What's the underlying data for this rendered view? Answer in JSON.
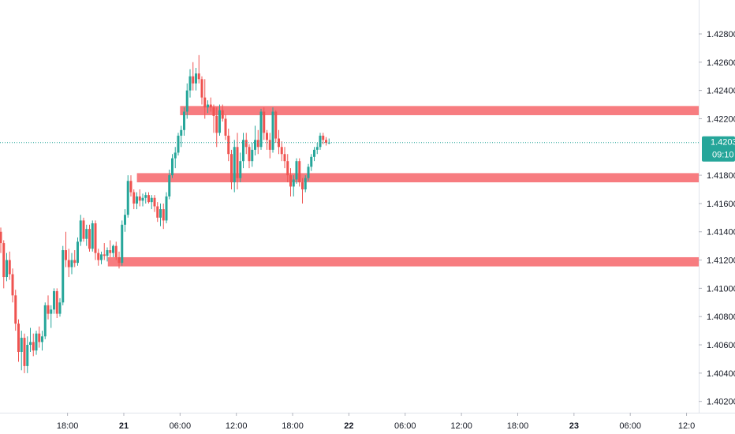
{
  "chart_data": {
    "type": "candlestick",
    "instrument": "",
    "x_tick_labels": [
      "18:00",
      "21",
      "06:00",
      "12:00",
      "18:00",
      "22",
      "06:00",
      "12:00",
      "18:00",
      "23",
      "06:00",
      "12:0"
    ],
    "x_tick_hours": [
      18,
      24,
      30,
      36,
      42,
      48,
      54,
      60,
      66,
      72,
      78,
      84
    ],
    "bold_ticks": [
      "21",
      "22",
      "23"
    ],
    "y_tick_labels": [
      "1.42800",
      "1.42600",
      "1.42400",
      "1.42200",
      "1.42000",
      "1.41800",
      "1.41600",
      "1.41400",
      "1.41200",
      "1.41000",
      "1.40800",
      "1.40600",
      "1.40400",
      "1.40200"
    ],
    "ylim": [
      1.4012,
      1.4304
    ],
    "xlim_hours": [
      10.8,
      85.3
    ],
    "last_price": "1.42031",
    "last_price_value": 1.42031,
    "countdown": "09:10",
    "colors": {
      "up": "#26a69a",
      "down": "#ef5350",
      "zone": "#f77c80",
      "price_line": "#26a69a",
      "axis_text": "#131722",
      "axis_line": "#e0e3eb"
    },
    "zones": [
      {
        "start_hour": 30.0,
        "bottom": 1.42225,
        "top": 1.4229
      },
      {
        "start_hour": 25.4,
        "bottom": 1.4175,
        "top": 1.41815
      },
      {
        "start_hour": 22.3,
        "bottom": 1.41155,
        "top": 1.4122
      }
    ],
    "ohlc": [
      [
        1.414,
        1.4143,
        1.4125,
        1.4132
      ],
      [
        1.4132,
        1.4134,
        1.41,
        1.4108
      ],
      [
        1.4108,
        1.4125,
        1.4105,
        1.412
      ],
      [
        1.412,
        1.4126,
        1.4106,
        1.411
      ],
      [
        1.411,
        1.4114,
        1.409,
        1.4095
      ],
      [
        1.4095,
        1.4099,
        1.407,
        1.4075
      ],
      [
        1.4075,
        1.4078,
        1.4048,
        1.4055
      ],
      [
        1.4055,
        1.407,
        1.4042,
        1.4065
      ],
      [
        1.4065,
        1.4068,
        1.404,
        1.4045
      ],
      [
        1.4045,
        1.4066,
        1.404,
        1.406
      ],
      [
        1.406,
        1.4072,
        1.4055,
        1.4062
      ],
      [
        1.4062,
        1.4068,
        1.4052,
        1.4056
      ],
      [
        1.4056,
        1.407,
        1.4053,
        1.4068
      ],
      [
        1.4068,
        1.4073,
        1.4058,
        1.4062
      ],
      [
        1.4062,
        1.407,
        1.4056,
        1.4066
      ],
      [
        1.4066,
        1.409,
        1.4064,
        1.4088
      ],
      [
        1.4088,
        1.4095,
        1.4078,
        1.4082
      ],
      [
        1.4082,
        1.4088,
        1.4072,
        1.4085
      ],
      [
        1.4085,
        1.41,
        1.4082,
        1.4098
      ],
      [
        1.4098,
        1.41,
        1.4079,
        1.4082
      ],
      [
        1.4082,
        1.4093,
        1.408,
        1.409
      ],
      [
        1.409,
        1.413,
        1.4088,
        1.4127
      ],
      [
        1.4127,
        1.414,
        1.4115,
        1.412
      ],
      [
        1.412,
        1.4128,
        1.4108,
        1.4115
      ],
      [
        1.4115,
        1.4125,
        1.411,
        1.412
      ],
      [
        1.412,
        1.4127,
        1.4115,
        1.4118
      ],
      [
        1.4118,
        1.4136,
        1.4116,
        1.4133
      ],
      [
        1.4133,
        1.4152,
        1.413,
        1.4148
      ],
      [
        1.4148,
        1.415,
        1.4133,
        1.4135
      ],
      [
        1.4135,
        1.4145,
        1.413,
        1.4142
      ],
      [
        1.4142,
        1.4145,
        1.4126,
        1.4128
      ],
      [
        1.4128,
        1.4148,
        1.4126,
        1.4146
      ],
      [
        1.4146,
        1.4148,
        1.412,
        1.4125
      ],
      [
        1.4125,
        1.4128,
        1.4116,
        1.412
      ],
      [
        1.412,
        1.4126,
        1.4117,
        1.4124
      ],
      [
        1.4124,
        1.4132,
        1.412,
        1.4123
      ],
      [
        1.4123,
        1.4129,
        1.4119,
        1.4127
      ],
      [
        1.4127,
        1.4134,
        1.4122,
        1.4125
      ],
      [
        1.4125,
        1.4131,
        1.4122,
        1.413
      ],
      [
        1.413,
        1.4133,
        1.412,
        1.4122
      ],
      [
        1.4122,
        1.4126,
        1.4114,
        1.4118
      ],
      [
        1.4118,
        1.4148,
        1.4116,
        1.4145
      ],
      [
        1.4145,
        1.4156,
        1.414,
        1.4152
      ],
      [
        1.4152,
        1.418,
        1.415,
        1.4176
      ],
      [
        1.4176,
        1.418,
        1.4165,
        1.4168
      ],
      [
        1.4168,
        1.417,
        1.4156,
        1.416
      ],
      [
        1.416,
        1.4168,
        1.4156,
        1.4165
      ],
      [
        1.4165,
        1.417,
        1.4158,
        1.4162
      ],
      [
        1.4162,
        1.4167,
        1.4158,
        1.4164
      ],
      [
        1.4164,
        1.4168,
        1.416,
        1.4166
      ],
      [
        1.4166,
        1.4168,
        1.416,
        1.4161
      ],
      [
        1.4161,
        1.4166,
        1.4156,
        1.4164
      ],
      [
        1.4164,
        1.4166,
        1.4154,
        1.4158
      ],
      [
        1.4158,
        1.4161,
        1.4147,
        1.415
      ],
      [
        1.415,
        1.416,
        1.4144,
        1.4156
      ],
      [
        1.4156,
        1.416,
        1.4142,
        1.4148
      ],
      [
        1.4148,
        1.4168,
        1.4146,
        1.4165
      ],
      [
        1.4165,
        1.4184,
        1.4163,
        1.418
      ],
      [
        1.418,
        1.4195,
        1.4178,
        1.4192
      ],
      [
        1.4192,
        1.42,
        1.4185,
        1.4196
      ],
      [
        1.4196,
        1.421,
        1.4194,
        1.4208
      ],
      [
        1.4208,
        1.4215,
        1.42,
        1.4212
      ],
      [
        1.4212,
        1.4228,
        1.4208,
        1.4225
      ],
      [
        1.4225,
        1.4245,
        1.422,
        1.424
      ],
      [
        1.424,
        1.4255,
        1.4235,
        1.425
      ],
      [
        1.425,
        1.426,
        1.424,
        1.4245
      ],
      [
        1.4245,
        1.4256,
        1.424,
        1.4252
      ],
      [
        1.4252,
        1.4265,
        1.4245,
        1.4248
      ],
      [
        1.4248,
        1.425,
        1.423,
        1.4235
      ],
      [
        1.4235,
        1.4248,
        1.422,
        1.4228
      ],
      [
        1.4228,
        1.4233,
        1.4224,
        1.423
      ],
      [
        1.423,
        1.4235,
        1.4225,
        1.4228
      ],
      [
        1.4228,
        1.423,
        1.421,
        1.4222
      ],
      [
        1.4222,
        1.4228,
        1.42,
        1.421
      ],
      [
        1.421,
        1.423,
        1.4208,
        1.4226
      ],
      [
        1.4226,
        1.423,
        1.4218,
        1.422
      ],
      [
        1.422,
        1.4223,
        1.4205,
        1.4208
      ],
      [
        1.4208,
        1.4213,
        1.419,
        1.4195
      ],
      [
        1.4195,
        1.4198,
        1.417,
        1.4175
      ],
      [
        1.4175,
        1.4205,
        1.4168,
        1.42
      ],
      [
        1.42,
        1.421,
        1.417,
        1.4178
      ],
      [
        1.4178,
        1.4196,
        1.4175,
        1.419
      ],
      [
        1.419,
        1.421,
        1.4185,
        1.4205
      ],
      [
        1.4205,
        1.421,
        1.4195,
        1.42
      ],
      [
        1.42,
        1.4202,
        1.4185,
        1.419
      ],
      [
        1.419,
        1.4203,
        1.4186,
        1.4198
      ],
      [
        1.4198,
        1.4215,
        1.4194,
        1.4205
      ],
      [
        1.4205,
        1.4212,
        1.4195,
        1.42
      ],
      [
        1.42,
        1.4227,
        1.4198,
        1.4225
      ],
      [
        1.4225,
        1.4228,
        1.4205,
        1.421
      ],
      [
        1.421,
        1.4212,
        1.4198,
        1.4205
      ],
      [
        1.4205,
        1.421,
        1.4192,
        1.4198
      ],
      [
        1.4198,
        1.4228,
        1.4196,
        1.4225
      ],
      [
        1.4225,
        1.4226,
        1.4203,
        1.4206
      ],
      [
        1.4206,
        1.4212,
        1.4195,
        1.42
      ],
      [
        1.42,
        1.4204,
        1.419,
        1.4195
      ],
      [
        1.4195,
        1.42,
        1.4185,
        1.419
      ],
      [
        1.419,
        1.4195,
        1.4175,
        1.418
      ],
      [
        1.418,
        1.4185,
        1.4165,
        1.4172
      ],
      [
        1.4172,
        1.418,
        1.4165,
        1.4177
      ],
      [
        1.4177,
        1.4192,
        1.4174,
        1.419
      ],
      [
        1.419,
        1.4192,
        1.4172,
        1.4175
      ],
      [
        1.4175,
        1.4178,
        1.416,
        1.417
      ],
      [
        1.417,
        1.418,
        1.4168,
        1.4178
      ],
      [
        1.4178,
        1.4188,
        1.4176,
        1.4186
      ],
      [
        1.4186,
        1.4195,
        1.4183,
        1.4193
      ],
      [
        1.4193,
        1.42,
        1.419,
        1.4198
      ],
      [
        1.4198,
        1.4203,
        1.4195,
        1.42
      ],
      [
        1.42,
        1.421,
        1.4198,
        1.4208
      ],
      [
        1.4208,
        1.421,
        1.4202,
        1.4205
      ],
      [
        1.4205,
        1.4207,
        1.4201,
        1.4203
      ],
      [
        1.4203,
        1.4206,
        1.4202,
        1.42031
      ]
    ]
  }
}
